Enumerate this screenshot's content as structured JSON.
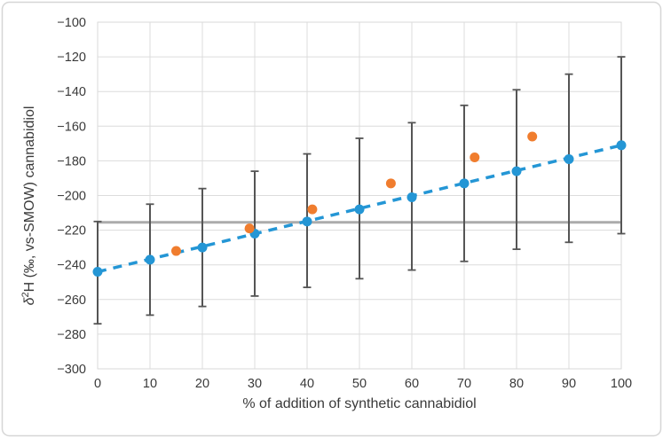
{
  "figure": {
    "x_axis_title": "% of addition of synthetic cannabidiol",
    "y_axis_title": {
      "delta": "δ",
      "sup": "2",
      "rest": "H (‰, vs-SMOW) cannabidiol"
    }
  },
  "chart_data": {
    "type": "scatter",
    "title": "",
    "xlabel": "% of addition of synthetic cannabidiol",
    "ylabel": "δ2H (‰, vs-SMOW) cannabidiol",
    "xlim": [
      0,
      100
    ],
    "ylim": [
      -300,
      -100
    ],
    "x_ticks": [
      0,
      10,
      20,
      30,
      40,
      50,
      60,
      70,
      80,
      90,
      100
    ],
    "y_ticks": [
      -100,
      -120,
      -140,
      -160,
      -180,
      -200,
      -220,
      -240,
      -260,
      -280,
      -300
    ],
    "grid": true,
    "legend": "none",
    "series": [
      {
        "name": "measured-cannabidiol-blue",
        "marker": "circle",
        "color": "#2496d5",
        "x": [
          0,
          10,
          20,
          30,
          40,
          50,
          60,
          70,
          80,
          90,
          100
        ],
        "y": [
          -244,
          -237,
          -230,
          -222,
          -215,
          -208,
          -201,
          -193,
          -186,
          -179,
          -171
        ],
        "error_bars": {
          "color": "#555555",
          "upper": [
            -215,
            -205,
            -196,
            -186,
            -176,
            -167,
            -158,
            -148,
            -139,
            -130,
            -120
          ],
          "lower": [
            -274,
            -269,
            -264,
            -258,
            -253,
            -248,
            -243,
            -238,
            -231,
            -227,
            -222
          ]
        }
      },
      {
        "name": "synthetic-addition-orange",
        "marker": "circle",
        "color": "#f07d2e",
        "x": [
          15,
          29,
          41,
          56,
          72,
          83
        ],
        "y": [
          -232,
          -219,
          -208,
          -193,
          -178,
          -166
        ]
      }
    ],
    "trendline": {
      "style": "dashed",
      "color": "#2496d5",
      "x": [
        0,
        100
      ],
      "y": [
        -244,
        -171
      ]
    },
    "reference_line": {
      "y": -215.5,
      "x_range": [
        0,
        100
      ],
      "color": "#ababab"
    },
    "style": {
      "gridline_color": "#dcdcdc",
      "plot_border_color": "#d9d9d9",
      "outer_border_color": "#d6d6d6",
      "tick_label_color": "#3a3a3a"
    }
  }
}
